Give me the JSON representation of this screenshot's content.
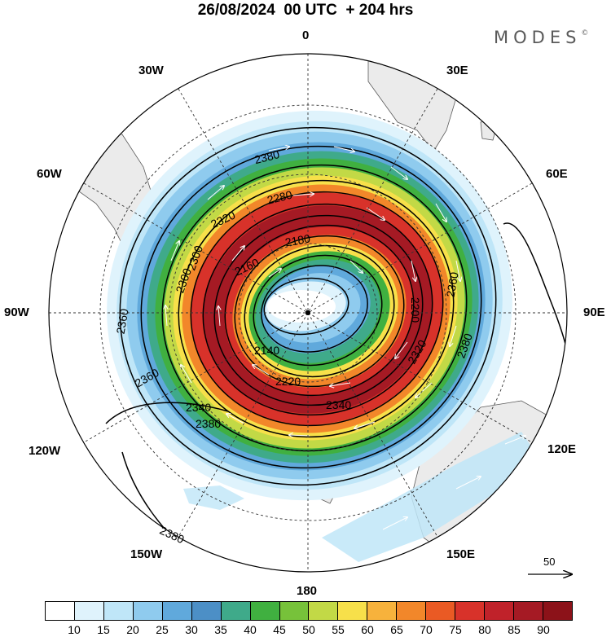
{
  "header": {
    "title": "26/08/2024  00 UTC  + 204 hrs",
    "brand": "MODES",
    "brand_mark": "©"
  },
  "map": {
    "projection": "south-polar-stereographic",
    "longitude_labels": {
      "lon_0": "0",
      "lon_30e": "30E",
      "lon_60e": "60E",
      "lon_90e": "90E",
      "lon_120e": "120E",
      "lon_150e": "150E",
      "lon_180": "180",
      "lon_150w": "150W",
      "lon_120w": "120W",
      "lon_90w": "90W",
      "lon_60w": "60W",
      "lon_30w": "30W"
    },
    "contour_labels": [
      "2380",
      "2360",
      "2340",
      "2320",
      "2300",
      "2280",
      "2200",
      "2180",
      "2160",
      "2140",
      "2220",
      "2380",
      "2360",
      "2380",
      "2360",
      "2340",
      "2320",
      "2300",
      "2380"
    ],
    "reference_vector": {
      "label": "50",
      "icon": "arrow-right-icon"
    }
  },
  "colorbar": {
    "colors": [
      "#ffffff",
      "#dff3fc",
      "#bfe6f8",
      "#8fcbee",
      "#60a9dc",
      "#4c8fc6",
      "#3faa8a",
      "#40b040",
      "#77c23a",
      "#c2d946",
      "#f7e04a",
      "#f7b23c",
      "#f2872a",
      "#ea5a24",
      "#d8322a",
      "#c0222a",
      "#a51a24",
      "#8c1219"
    ],
    "labels": [
      "10",
      "15",
      "20",
      "25",
      "30",
      "35",
      "40",
      "45",
      "50",
      "55",
      "60",
      "65",
      "70",
      "75",
      "80",
      "85",
      "90"
    ],
    "units_colors": {
      "land": "#ebebeb",
      "coast": "#555555"
    }
  }
}
